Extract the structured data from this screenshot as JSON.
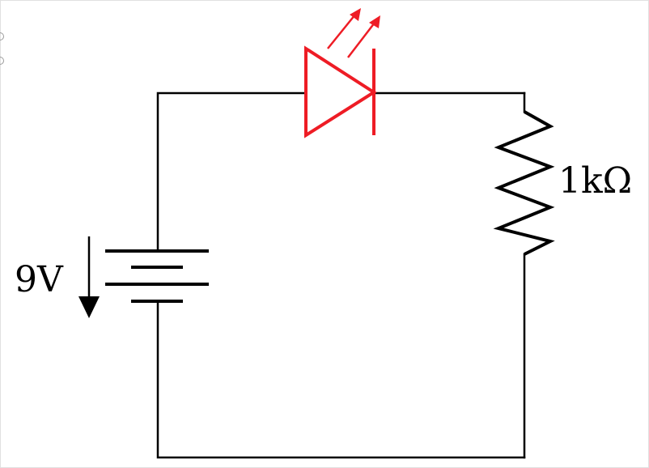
{
  "diagram": {
    "battery_label": "9V",
    "resistor_label": "1kΩ"
  },
  "colors": {
    "wire": "#000000",
    "led": "#ee1c25",
    "border": "#e0e0e0"
  }
}
